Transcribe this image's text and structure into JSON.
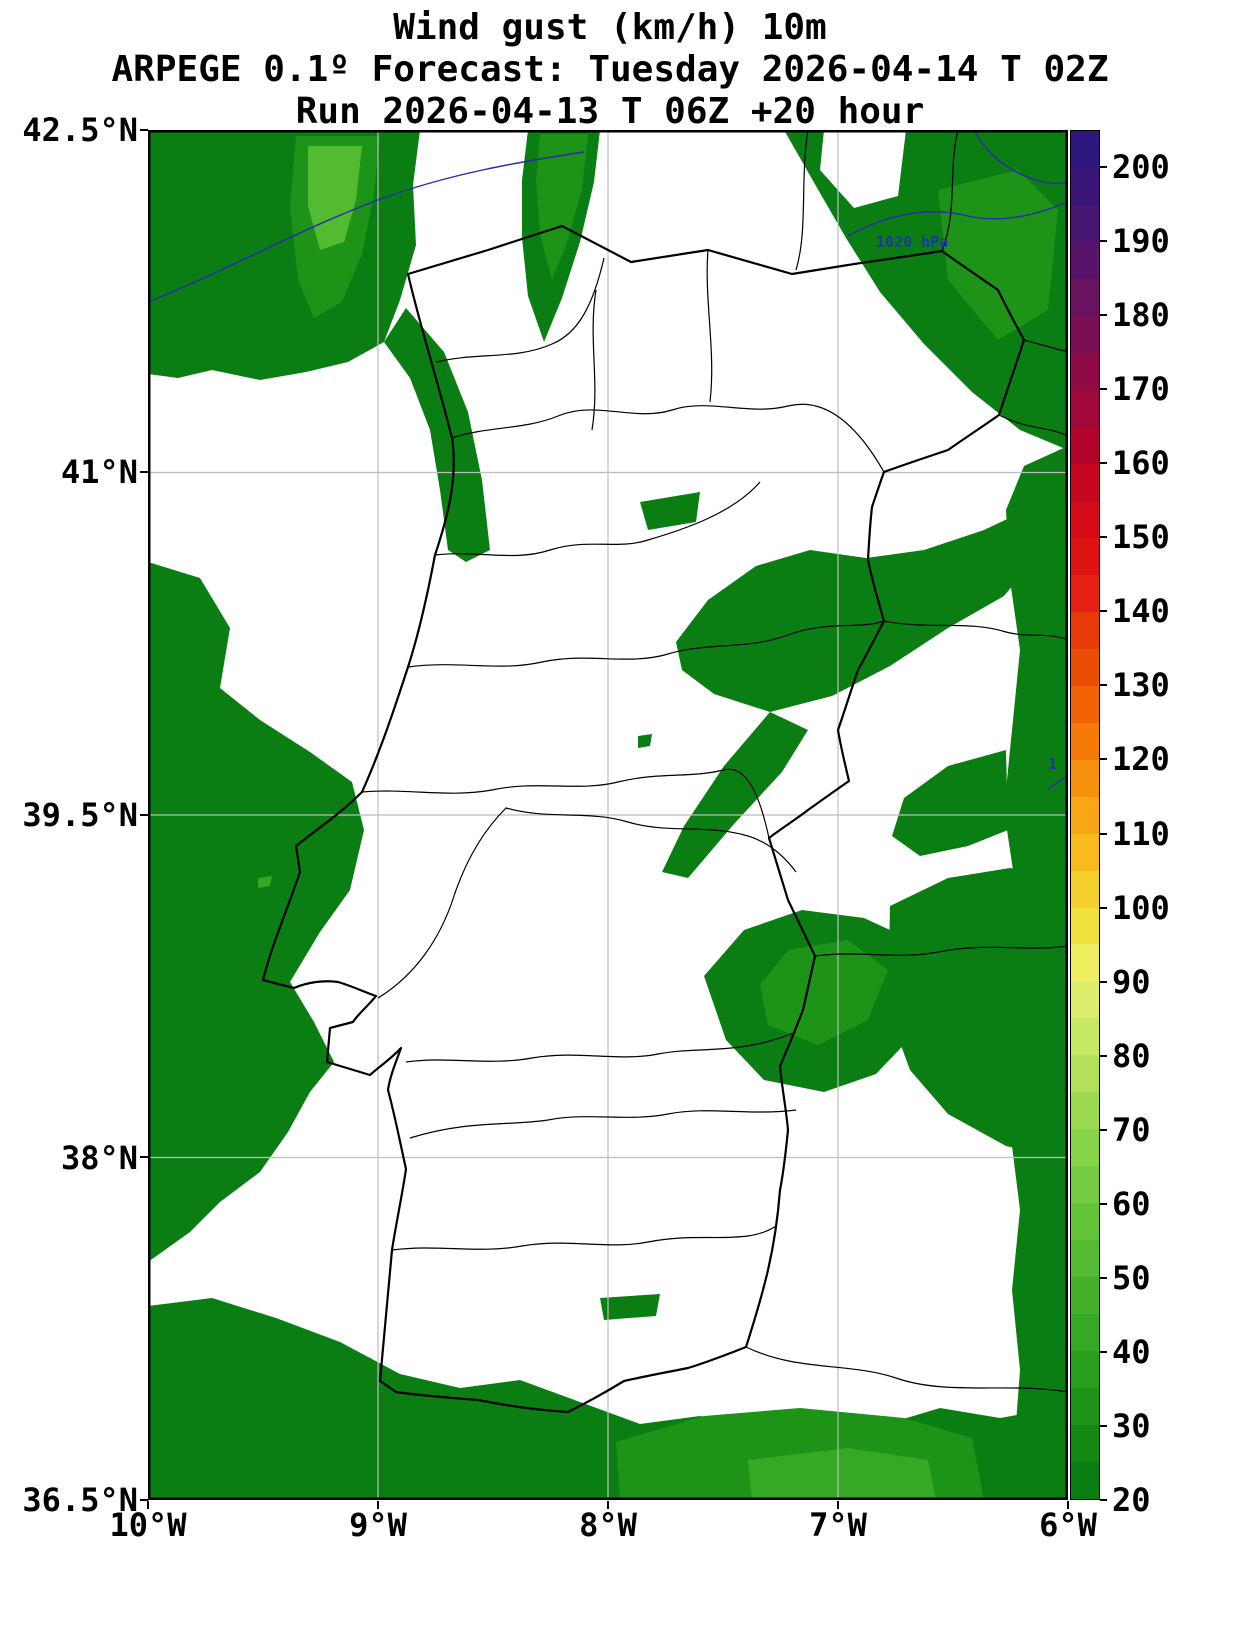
{
  "header": {
    "title": "Wind gust (km/h) 10m",
    "subtitle": "ARPEGE 0.1º Forecast: Tuesday 2026-04-14 T 02Z",
    "run_info": "Run 2026-04-13 T 06Z +20 hour"
  },
  "axes": {
    "lat_ticks": [
      "42.5°N",
      "41°N",
      "39.5°N",
      "38°N",
      "36.5°N"
    ],
    "lon_ticks": [
      "10°W",
      "9°W",
      "8°W",
      "7°W",
      "6°W"
    ]
  },
  "map": {
    "isobar_label": "1020 hPa",
    "isobar_label_partial": "1"
  },
  "chart_data": {
    "type": "heatmap",
    "title": "Wind gust (km/h) 10m",
    "model": "ARPEGE 0.1º",
    "valid_time": "Tuesday 2026-04-14 T 02Z",
    "run_time": "2026-04-13 T 06Z",
    "lead_hours": 20,
    "unit": "km/h",
    "region": "Portugal and western Spain",
    "lat_range_deg_north": [
      36.5,
      42.5
    ],
    "lon_range_deg_west": [
      10,
      6
    ],
    "grid_lines": {
      "lats": [
        41,
        39.5,
        38
      ],
      "lons": [
        9,
        8,
        7
      ]
    },
    "isobar_labels": [
      "1020 hPa"
    ],
    "shading_summary": "Green shading (20-50 km/h gusts) over Atlantic ocean, NW coast, northern mountains, eastern border with Spain and Algarve south coast; interior mostly below 20 km/h (white)",
    "map_fill_colors": {
      "g20": "#0a7e12",
      "g30": "#1d9418",
      "g40": "#35a824",
      "g50": "#52bb31"
    },
    "colorbar": {
      "min": 20,
      "max": 205,
      "step": 5,
      "tick_values": [
        20,
        30,
        40,
        50,
        60,
        70,
        80,
        90,
        100,
        110,
        120,
        130,
        140,
        150,
        160,
        170,
        180,
        190,
        200
      ],
      "segments": [
        {
          "from": 20,
          "to": 25,
          "color": "#0a7e12"
        },
        {
          "from": 25,
          "to": 30,
          "color": "#138914"
        },
        {
          "from": 30,
          "to": 35,
          "color": "#1d9418"
        },
        {
          "from": 35,
          "to": 40,
          "color": "#289e1e"
        },
        {
          "from": 40,
          "to": 45,
          "color": "#35a824"
        },
        {
          "from": 45,
          "to": 50,
          "color": "#43b22a"
        },
        {
          "from": 50,
          "to": 55,
          "color": "#52bb31"
        },
        {
          "from": 55,
          "to": 60,
          "color": "#63c438"
        },
        {
          "from": 60,
          "to": 65,
          "color": "#75cc40"
        },
        {
          "from": 65,
          "to": 70,
          "color": "#88d448"
        },
        {
          "from": 70,
          "to": 75,
          "color": "#9cdb51"
        },
        {
          "from": 75,
          "to": 80,
          "color": "#b1e25a"
        },
        {
          "from": 80,
          "to": 85,
          "color": "#c7e863"
        },
        {
          "from": 85,
          "to": 90,
          "color": "#ddee6d"
        },
        {
          "from": 90,
          "to": 95,
          "color": "#eeee5e"
        },
        {
          "from": 95,
          "to": 100,
          "color": "#f2e13c"
        },
        {
          "from": 100,
          "to": 105,
          "color": "#f5cf2b"
        },
        {
          "from": 105,
          "to": 110,
          "color": "#f7bb1e"
        },
        {
          "from": 110,
          "to": 115,
          "color": "#f8a614"
        },
        {
          "from": 115,
          "to": 120,
          "color": "#f7900d"
        },
        {
          "from": 120,
          "to": 125,
          "color": "#f57a08"
        },
        {
          "from": 125,
          "to": 130,
          "color": "#f16305"
        },
        {
          "from": 130,
          "to": 135,
          "color": "#ec4d04"
        },
        {
          "from": 135,
          "to": 140,
          "color": "#e63a07"
        },
        {
          "from": 140,
          "to": 145,
          "color": "#e62114"
        },
        {
          "from": 145,
          "to": 150,
          "color": "#e01313"
        },
        {
          "from": 150,
          "to": 155,
          "color": "#d50b17"
        },
        {
          "from": 155,
          "to": 160,
          "color": "#c50720"
        },
        {
          "from": 160,
          "to": 165,
          "color": "#b3052c"
        },
        {
          "from": 165,
          "to": 170,
          "color": "#a0073a"
        },
        {
          "from": 170,
          "to": 175,
          "color": "#8d0a47"
        },
        {
          "from": 175,
          "to": 180,
          "color": "#7a0e54"
        },
        {
          "from": 180,
          "to": 185,
          "color": "#681260"
        },
        {
          "from": 185,
          "to": 190,
          "color": "#57146a"
        },
        {
          "from": 190,
          "to": 195,
          "color": "#471572"
        },
        {
          "from": 195,
          "to": 200,
          "color": "#3a1679"
        },
        {
          "from": 200,
          "to": 205,
          "color": "#2d177e"
        }
      ]
    }
  }
}
